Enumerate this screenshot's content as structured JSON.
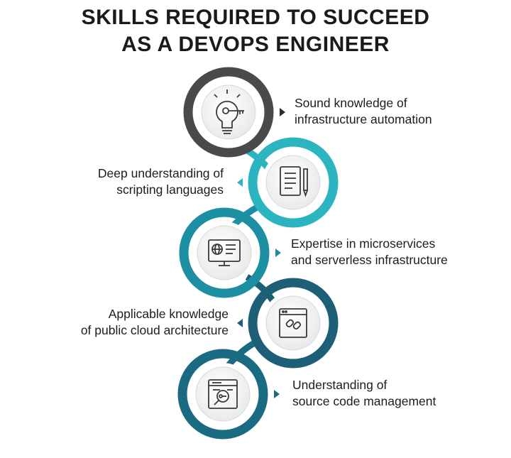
{
  "title": {
    "line1": "SKILLS REQUIRED TO SUCCEED",
    "line2": "AS A DEVOPS ENGINEER"
  },
  "skills": [
    {
      "line1": "Sound knowledge of",
      "line2": "infrastructure automation",
      "icon": "lightbulb-key-icon",
      "color": "#4a4a4a"
    },
    {
      "line1": "Deep understanding of",
      "line2": "scripting languages",
      "icon": "document-pencil-icon",
      "color": "#2cb5c0"
    },
    {
      "line1": "Expertise in microservices",
      "line2": "and serverless infrastructure",
      "icon": "monitor-globe-icon",
      "color": "#1c8fa3"
    },
    {
      "line1": "Applicable knowledge",
      "line2": "of public cloud architecture",
      "icon": "browser-link-icon",
      "color": "#1d5f76"
    },
    {
      "line1": "Understanding of",
      "line2": "source code management",
      "icon": "browser-search-key-icon",
      "color": "#1a6a82"
    }
  ]
}
